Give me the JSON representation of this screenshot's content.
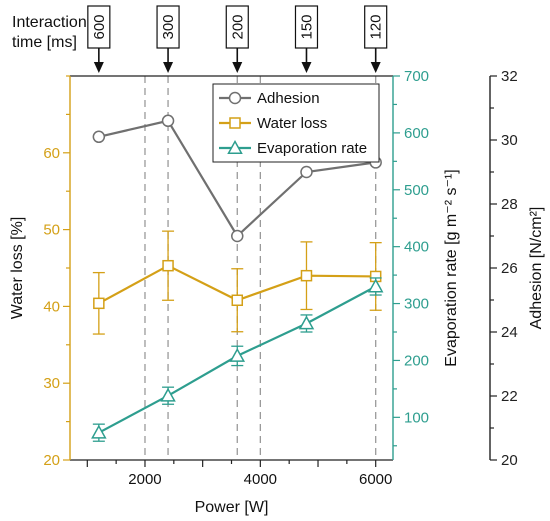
{
  "chart_data": {
    "type": "line",
    "xlabel": "Power [W]",
    "xlim": [
      700,
      6300
    ],
    "xticks": [
      2000,
      4000,
      6000
    ],
    "x": [
      1200,
      2400,
      3600,
      4800,
      6000
    ],
    "dashed_vlines": [
      2000,
      2400,
      3600,
      4000,
      6000
    ],
    "top_axis": {
      "label_line1": "Interaction",
      "label_line2": "time [ms]",
      "values": [
        "600",
        "300",
        "200",
        "150",
        "120"
      ]
    },
    "axes": {
      "water": {
        "label": "Water loss [%]",
        "ylim": [
          20,
          70
        ],
        "ticks": [
          20,
          30,
          40,
          50,
          60
        ],
        "color": "#D4A017",
        "position": "left"
      },
      "evap": {
        "label": "Evaporation rate [g m⁻² s⁻¹]",
        "ylim": [
          25,
          700
        ],
        "ticks": [
          100,
          200,
          300,
          400,
          500,
          600,
          700
        ],
        "color": "#2E9E8F",
        "position": "right"
      },
      "adhesion": {
        "label": "Adhesion [N/cm²]",
        "ylim": [
          20,
          32
        ],
        "ticks": [
          20,
          22,
          24,
          26,
          28,
          30,
          32
        ],
        "color": "#222222",
        "position": "far-right"
      }
    },
    "series": [
      {
        "name": "Adhesion",
        "axis": "adhesion",
        "marker": "circle",
        "color": "#707070",
        "values": [
          30.1,
          30.6,
          27.0,
          29.0,
          29.3
        ]
      },
      {
        "name": "Water loss",
        "axis": "water",
        "marker": "square",
        "color": "#D4A017",
        "values": [
          40.4,
          45.3,
          40.8,
          44.0,
          43.9
        ],
        "errors": [
          4.0,
          4.5,
          4.1,
          4.4,
          4.4
        ]
      },
      {
        "name": "Evaporation rate",
        "axis": "evap",
        "marker": "triangle",
        "color": "#2E9E8F",
        "values": [
          73,
          138,
          208,
          265,
          330
        ],
        "errors": [
          15,
          15,
          17,
          15,
          15
        ]
      }
    ],
    "legend": "top-right"
  }
}
